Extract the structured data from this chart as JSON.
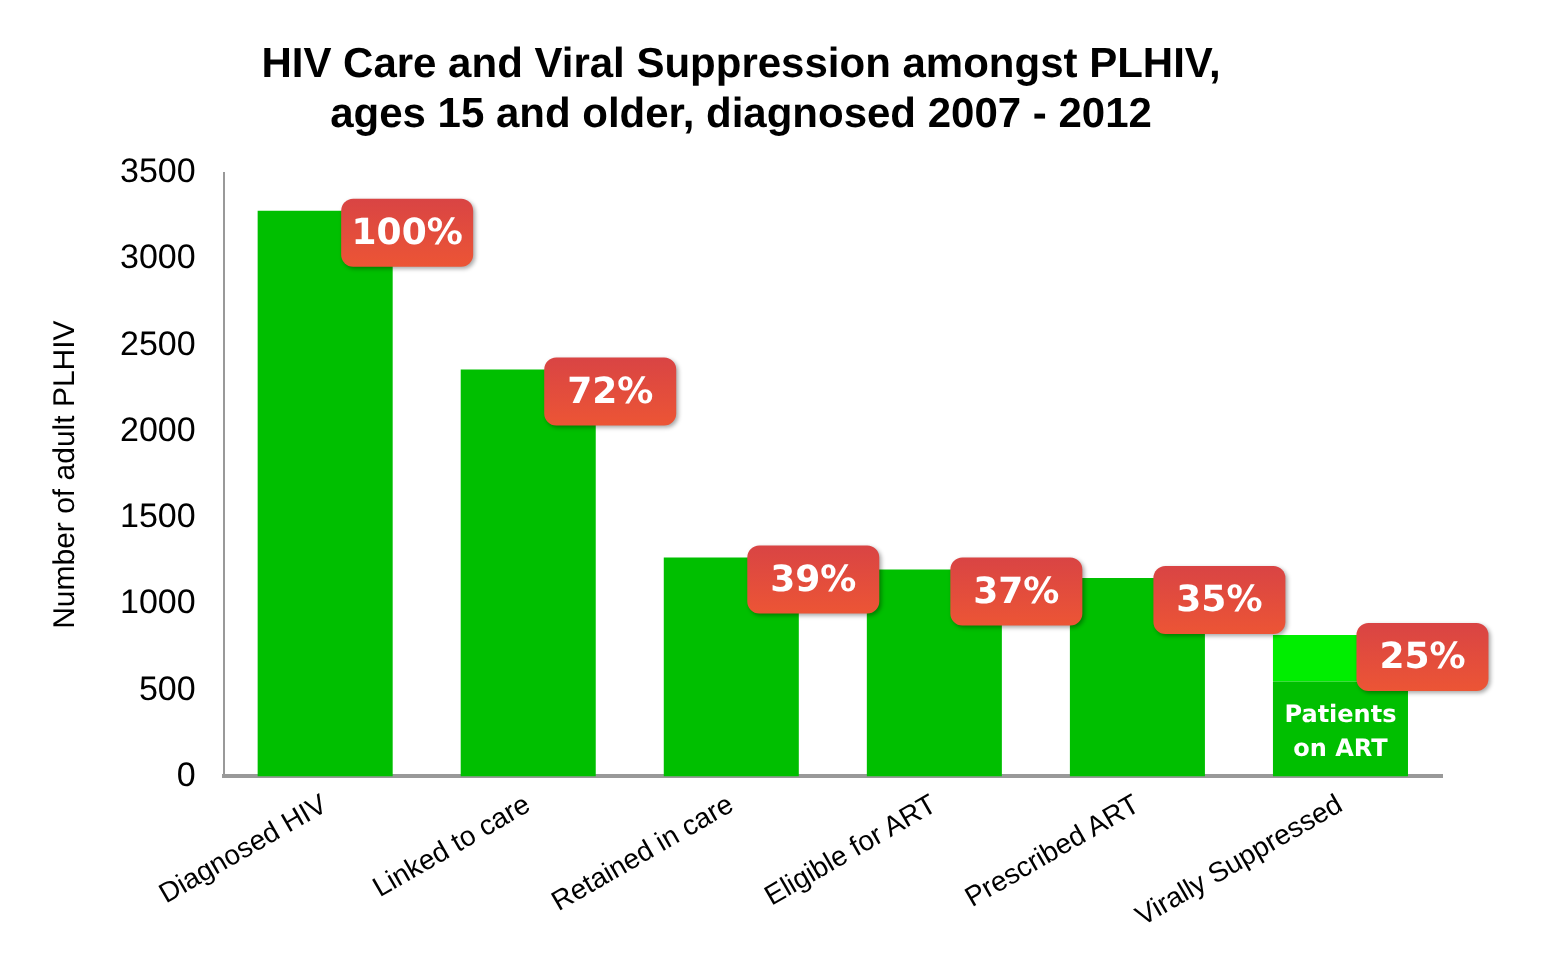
{
  "chart_data": {
    "type": "bar",
    "title": "HIV Care and Viral Suppression amongst PLHIV, ages 15 and older, diagnosed 2007 - 2012",
    "ylabel": "Number of adult PLHIV",
    "categories": [
      "Diagnosed HIV",
      "Linked to care",
      "Retained in care",
      "Eligible for ART",
      "Prescribed ART",
      "Virally Suppressed"
    ],
    "stacked": true,
    "series": [
      {
        "color": "#00bf00",
        "values": [
          3280,
          2360,
          1270,
          1200,
          1150,
          550
        ]
      },
      {
        "color": "#00ee00",
        "values": [
          null,
          null,
          null,
          null,
          null,
          270
        ]
      }
    ],
    "ylim": [
      0,
      3500
    ],
    "yticks": [
      0,
      500,
      1000,
      1500,
      2000,
      2500,
      3000,
      3500
    ],
    "grid": false,
    "legend": false,
    "annotations": [
      {
        "text": "100%",
        "x": "Diagnosed HIV",
        "y": 3280
      },
      {
        "text": "72%",
        "x": "Linked to care",
        "y": 2360
      },
      {
        "text": "39%",
        "x": "Retained in care",
        "y": 1270
      },
      {
        "text": "37%",
        "x": "Eligible for ART",
        "y": 1200
      },
      {
        "text": "35%",
        "x": "Prescribed ART",
        "y": 1150
      },
      {
        "text": "25%",
        "x": "Virally Suppressed",
        "y": 820
      },
      "Patients on ART"
    ]
  }
}
